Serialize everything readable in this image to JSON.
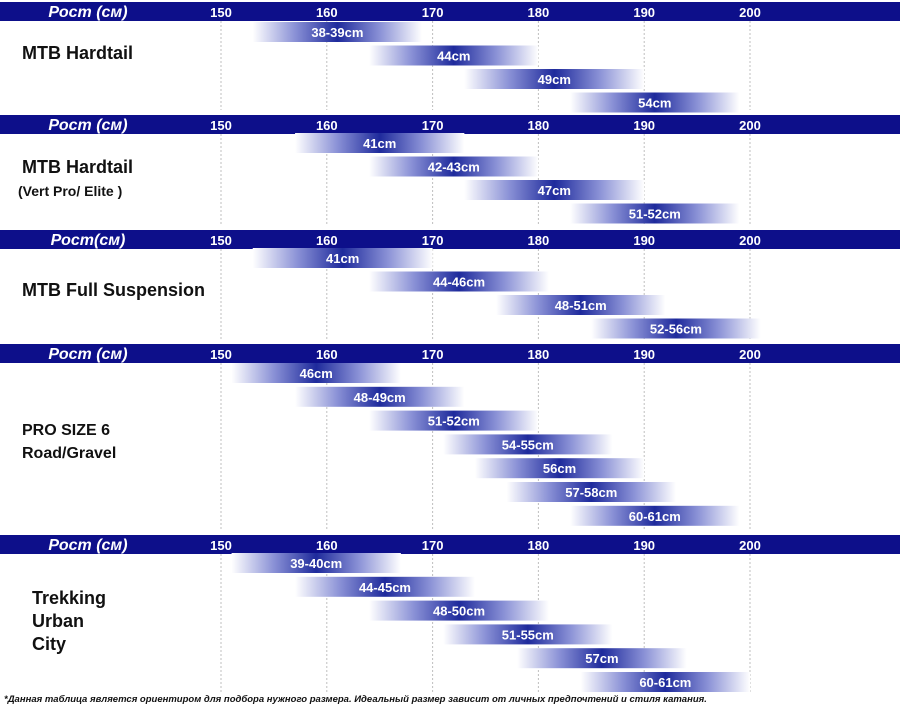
{
  "colors": {
    "header": "#0d0f8a",
    "header_text": "#ffffff",
    "bar": "#1e2a9c",
    "grid": "#bfbfbf",
    "label": "#111111"
  },
  "axis_ticks": [
    "150",
    "160",
    "170",
    "180",
    "190",
    "200"
  ],
  "chart_data": [
    {
      "type": "bar",
      "title": "MTB Hardtail",
      "header_label": "Рост (см)",
      "x_range_cm": [
        150,
        200
      ],
      "bars": [
        {
          "label": "38-39cm",
          "from": 153,
          "to": 169
        },
        {
          "label": "44cm",
          "from": 164,
          "to": 180
        },
        {
          "label": "49cm",
          "from": 173,
          "to": 190
        },
        {
          "label": "54cm",
          "from": 183,
          "to": 199
        }
      ]
    },
    {
      "type": "bar",
      "title": "MTB Hardtail",
      "subtitle": "(Vert Pro/ Elite  )",
      "header_label": "Рост (см)",
      "x_range_cm": [
        150,
        200
      ],
      "bars": [
        {
          "label": "41cm",
          "from": 157,
          "to": 173
        },
        {
          "label": "42-43cm",
          "from": 164,
          "to": 180
        },
        {
          "label": "47cm",
          "from": 173,
          "to": 190
        },
        {
          "label": "51-52cm",
          "from": 183,
          "to": 199
        }
      ]
    },
    {
      "type": "bar",
      "title": "MTB Full Suspension",
      "header_label": "Рост(см)",
      "x_range_cm": [
        150,
        200
      ],
      "bars": [
        {
          "label": "41cm",
          "from": 153,
          "to": 170
        },
        {
          "label": "44-46cm",
          "from": 164,
          "to": 181
        },
        {
          "label": "48-51cm",
          "from": 176,
          "to": 192
        },
        {
          "label": "52-56cm",
          "from": 185,
          "to": 201
        }
      ]
    },
    {
      "type": "bar",
      "title": "PRO SIZE 6",
      "subtitle": "Road/Gravel",
      "header_label": "Рост (см)",
      "x_range_cm": [
        150,
        200
      ],
      "bars": [
        {
          "label": "46cm",
          "from": 151,
          "to": 167
        },
        {
          "label": "48-49cm",
          "from": 157,
          "to": 173
        },
        {
          "label": "51-52cm",
          "from": 164,
          "to": 180
        },
        {
          "label": "54-55cm",
          "from": 171,
          "to": 187
        },
        {
          "label": "56cm",
          "from": 174,
          "to": 190
        },
        {
          "label": "57-58cm",
          "from": 177,
          "to": 193
        },
        {
          "label": "60-61cm",
          "from": 183,
          "to": 199
        }
      ]
    },
    {
      "type": "bar",
      "title": "Trekking",
      "subtitle": "Urban",
      "subtitle2": "City",
      "header_label": "Рост (см)",
      "x_range_cm": [
        150,
        200
      ],
      "bars": [
        {
          "label": "39-40cm",
          "from": 151,
          "to": 167
        },
        {
          "label": "44-45cm",
          "from": 157,
          "to": 174
        },
        {
          "label": "48-50cm",
          "from": 164,
          "to": 181
        },
        {
          "label": "51-55cm",
          "from": 171,
          "to": 187
        },
        {
          "label": "57cm",
          "from": 178,
          "to": 194
        },
        {
          "label": "60-61cm",
          "from": 184,
          "to": 200
        }
      ]
    }
  ],
  "footnote": "*Данная таблица является ориентиром для подбора нужного размера. Идеальный размер зависит от личных предпочтений и стиля катания."
}
